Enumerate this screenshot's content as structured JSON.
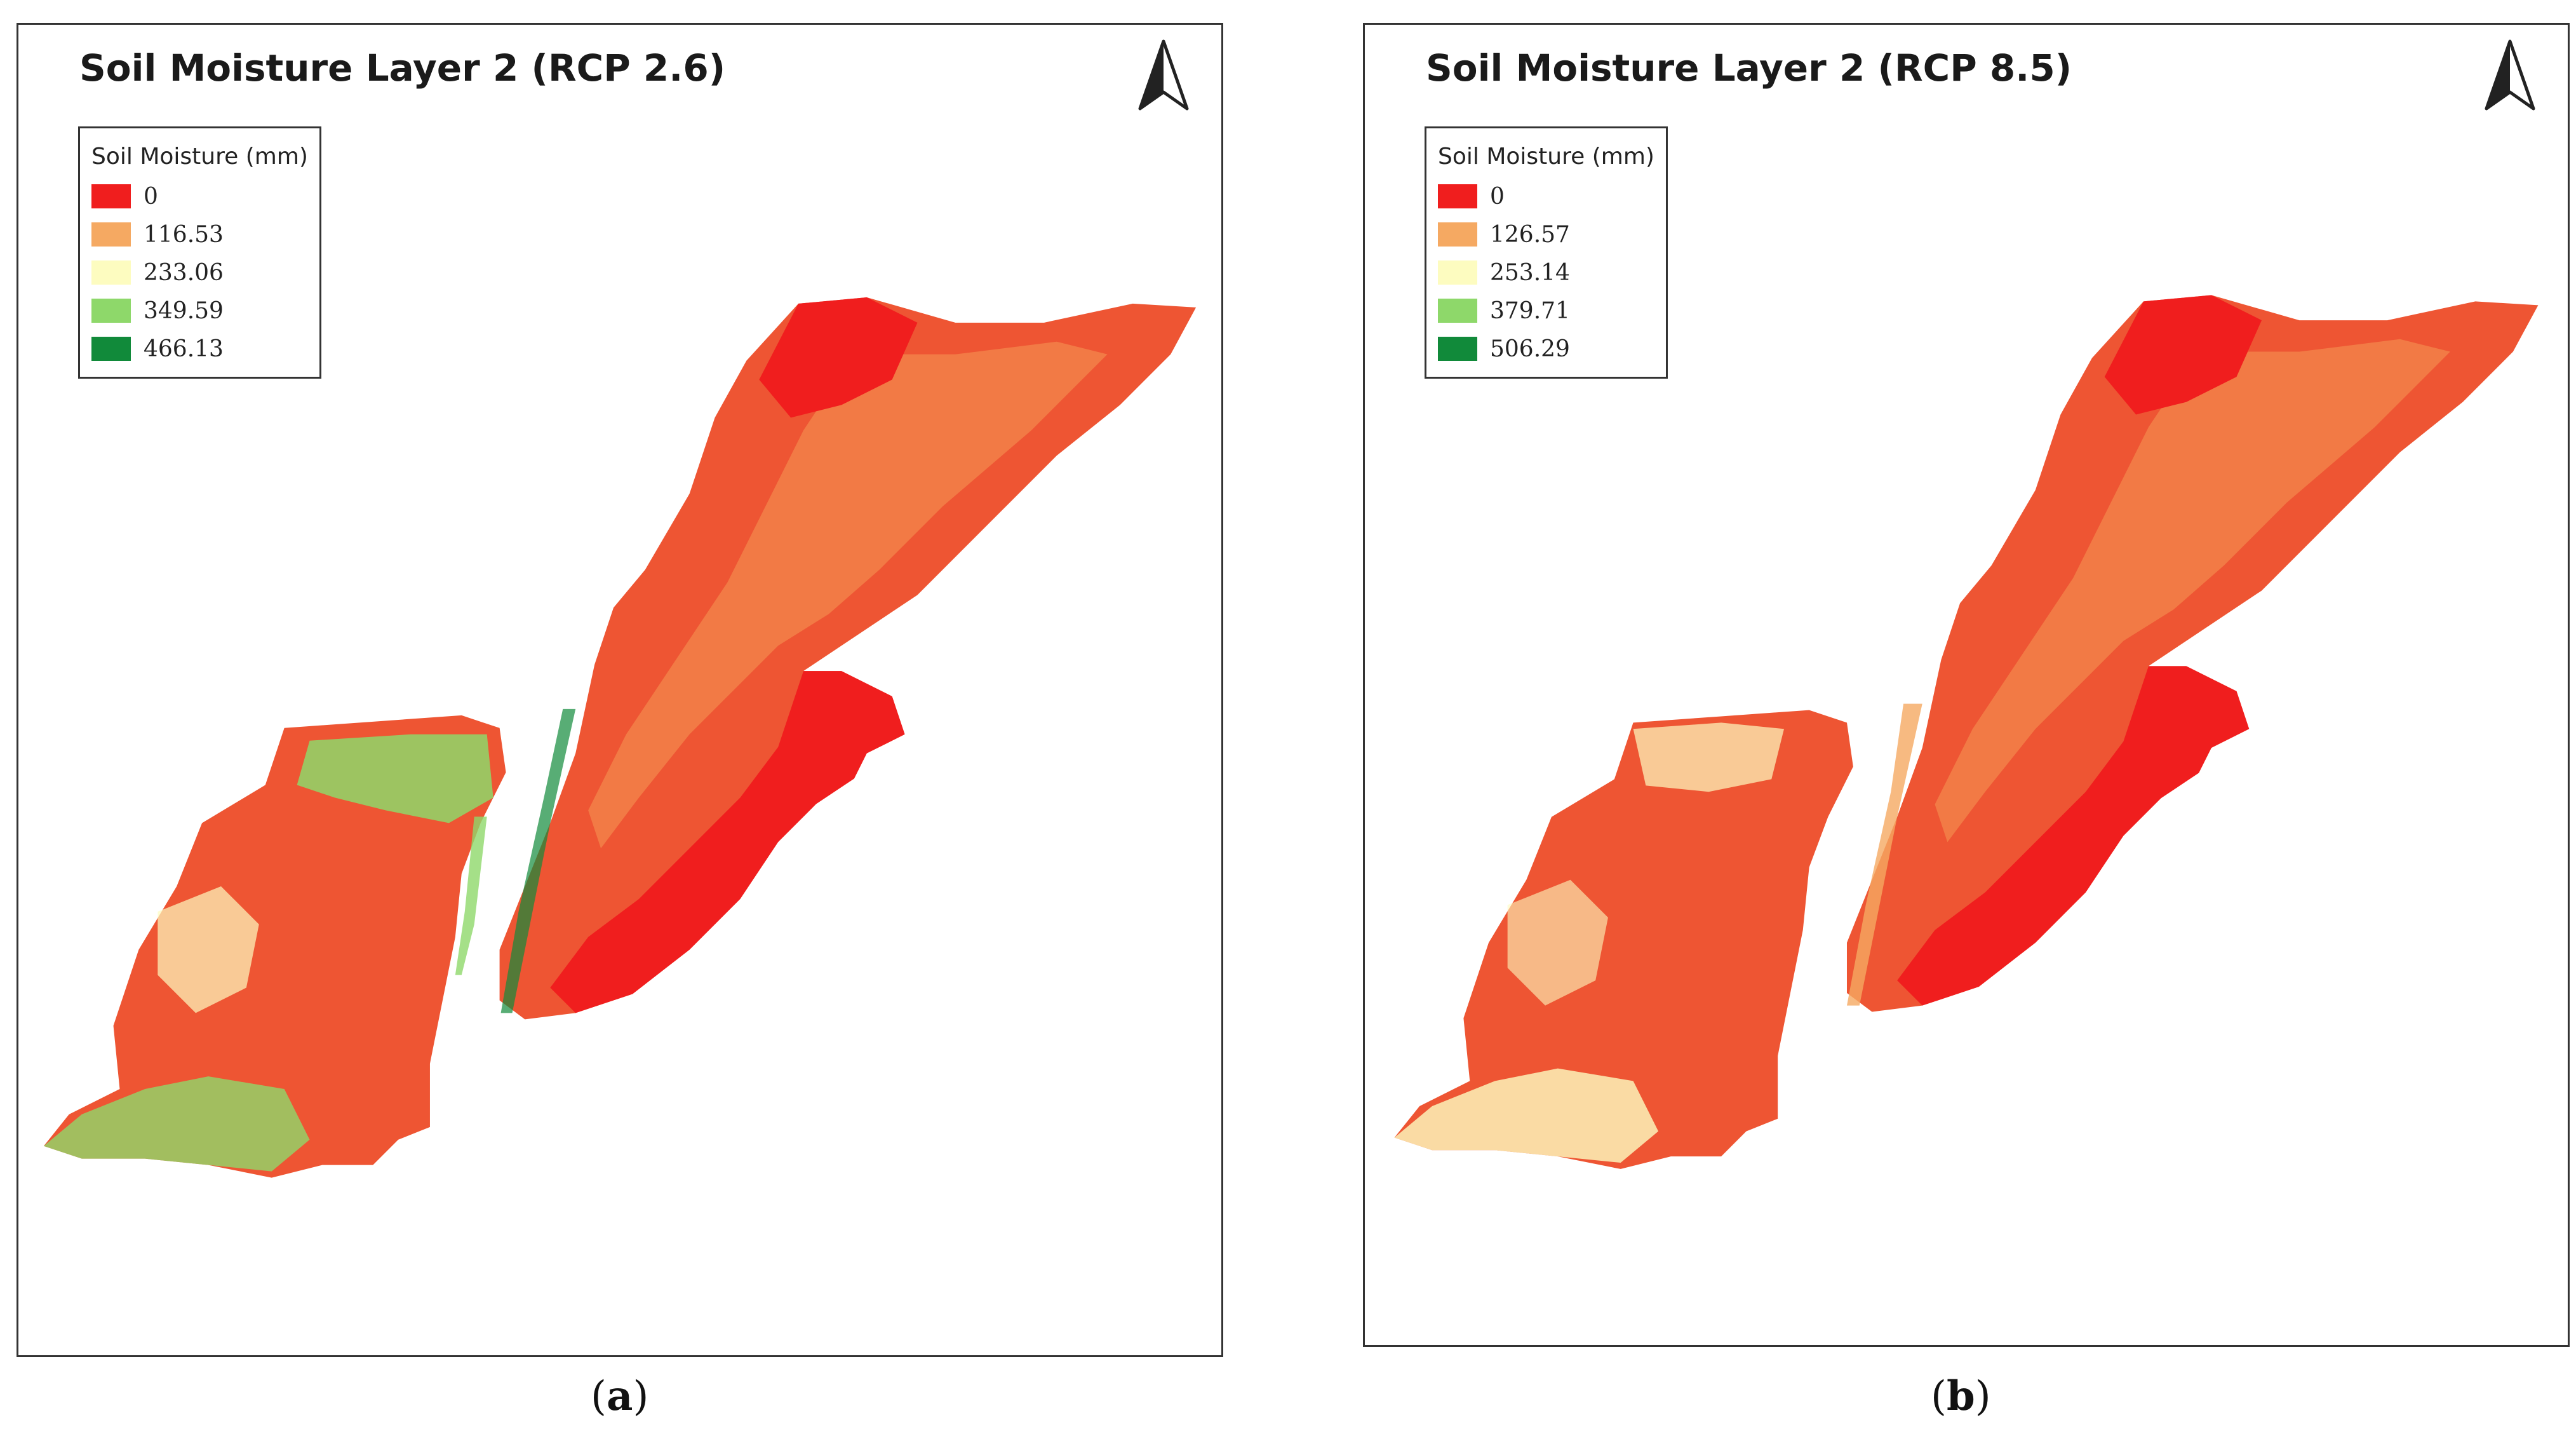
{
  "colors": {
    "class0": "#f01e1e",
    "class1": "#f5a962",
    "class2": "#fdfcc0",
    "class3": "#8ed86a",
    "class4": "#118a3a",
    "base_fill": "#ee5533",
    "mid_fill": "#f27a45",
    "border": "#333333"
  },
  "maps": [
    {
      "id": "a",
      "title": "Soil Moisture Layer 2 (RCP 2.6)",
      "caption_letter": "a",
      "legend": {
        "title": "Soil Moisture (mm)",
        "items": [
          {
            "label": "0",
            "color": "#f01e1e"
          },
          {
            "label": "116.53",
            "color": "#f5a962"
          },
          {
            "label": "233.06",
            "color": "#fdfcc0"
          },
          {
            "label": "349.59",
            "color": "#8ed86a"
          },
          {
            "label": "466.13",
            "color": "#118a3a"
          }
        ]
      }
    },
    {
      "id": "b",
      "title": "Soil Moisture Layer 2 (RCP 8.5)",
      "caption_letter": "b",
      "legend": {
        "title": "Soil Moisture (mm)",
        "items": [
          {
            "label": "0",
            "color": "#f01e1e"
          },
          {
            "label": "126.57",
            "color": "#f5a962"
          },
          {
            "label": "253.14",
            "color": "#fdfcc0"
          },
          {
            "label": "379.71",
            "color": "#8ed86a"
          },
          {
            "label": "506.29",
            "color": "#118a3a"
          }
        ]
      }
    }
  ]
}
